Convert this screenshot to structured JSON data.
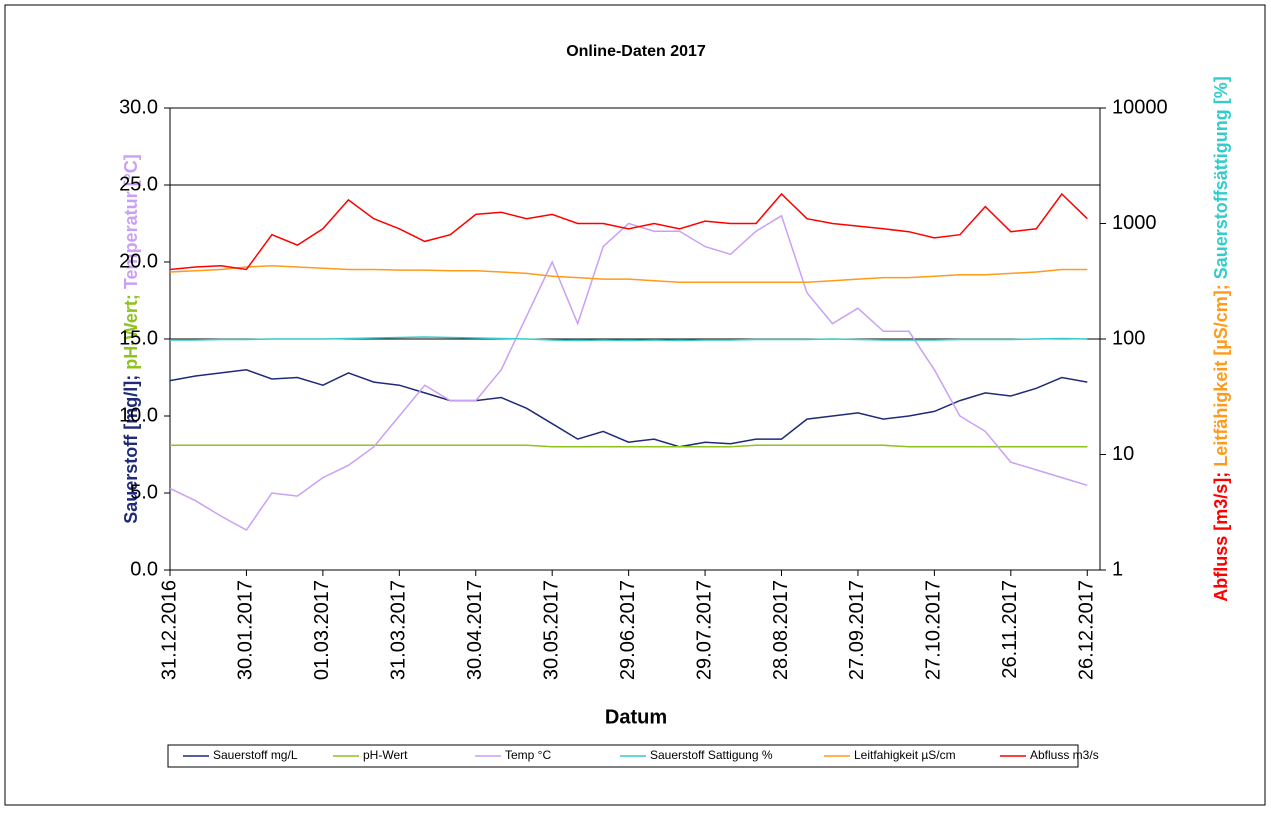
{
  "chart_data": {
    "type": "line",
    "title": "Online-Daten 2017",
    "xlabel": "Datum",
    "ylabel": [
      {
        "text": "Sauerstoff [mg/l]; ",
        "color": "#1f2a7a"
      },
      {
        "text": "pH-Wert; ",
        "color": "#8dc21f"
      },
      {
        "text": "Temperatur [°C]",
        "color": "#c9a0f5"
      }
    ],
    "y2label": [
      {
        "text": "Abfluss [m3/s]; ",
        "color": "#ff0000"
      },
      {
        "text": "Leitfähigkeit [µS/cm]; ",
        "color": "#ff9a1a"
      },
      {
        "text": "Sauerstoffsättigung [%]",
        "color": "#33cccc"
      }
    ],
    "x": [
      "31.12.2016",
      "10.01.2017",
      "20.01.2017",
      "30.01.2017",
      "09.02.2017",
      "19.02.2017",
      "01.03.2017",
      "11.03.2017",
      "21.03.2017",
      "31.03.2017",
      "10.04.2017",
      "20.04.2017",
      "30.04.2017",
      "10.05.2017",
      "20.05.2017",
      "30.05.2017",
      "09.06.2017",
      "19.06.2017",
      "29.06.2017",
      "09.07.2017",
      "19.07.2017",
      "29.07.2017",
      "08.08.2017",
      "18.08.2017",
      "28.08.2017",
      "07.09.2017",
      "17.09.2017",
      "27.09.2017",
      "07.10.2017",
      "17.10.2017",
      "27.10.2017",
      "06.11.2017",
      "16.11.2017",
      "26.11.2017",
      "06.12.2017",
      "16.12.2017",
      "26.12.2017"
    ],
    "xlim": [
      "31.12.2016",
      "31.12.2017"
    ],
    "xticks": [
      "31.12.2016",
      "30.01.2017",
      "01.03.2017",
      "31.03.2017",
      "30.04.2017",
      "30.05.2017",
      "29.06.2017",
      "29.07.2017",
      "28.08.2017",
      "27.09.2017",
      "27.10.2017",
      "26.11.2017",
      "26.12.2017"
    ],
    "ylim": [
      0,
      30
    ],
    "yticks": [
      {
        "value": 0,
        "label": "0.0"
      },
      {
        "value": 5,
        "label": "5.0"
      },
      {
        "value": 10,
        "label": "10.0"
      },
      {
        "value": 15,
        "label": "15.0"
      },
      {
        "value": 20,
        "label": "20.0"
      },
      {
        "value": 25,
        "label": "25.0"
      },
      {
        "value": 30,
        "label": "30.0"
      }
    ],
    "grid_lines": [
      15,
      25
    ],
    "y2lim": [
      1,
      10000
    ],
    "y2log": true,
    "y2ticks": [
      1,
      10,
      100,
      1000,
      10000
    ],
    "series": [
      {
        "name": "Sauerstoff mg/L",
        "color": "#1f2a7a",
        "values": [
          12.3,
          12.6,
          12.8,
          13.0,
          12.4,
          12.5,
          12.0,
          12.8,
          12.2,
          12.0,
          11.5,
          11.0,
          11.0,
          11.2,
          10.5,
          9.5,
          8.5,
          9.0,
          8.3,
          8.5,
          8.0,
          8.3,
          8.2,
          8.5,
          8.5,
          9.8,
          10.0,
          10.2,
          9.8,
          10.0,
          10.3,
          11.0,
          11.5,
          11.3,
          11.8,
          12.5,
          12.2
        ]
      },
      {
        "name": "pH-Wert",
        "color": "#8dc21f",
        "values": [
          8.1,
          8.1,
          8.1,
          8.1,
          8.1,
          8.1,
          8.1,
          8.1,
          8.1,
          8.1,
          8.1,
          8.1,
          8.1,
          8.1,
          8.1,
          8.0,
          8.0,
          8.0,
          8.0,
          8.0,
          8.0,
          8.0,
          8.0,
          8.1,
          8.1,
          8.1,
          8.1,
          8.1,
          8.1,
          8.0,
          8.0,
          8.0,
          8.0,
          8.0,
          8.0,
          8.0,
          8.0
        ]
      },
      {
        "name": "Temp °C",
        "color": "#c9a0f5",
        "values": [
          5.3,
          4.5,
          3.5,
          2.6,
          5.0,
          4.8,
          6.0,
          6.8,
          8.0,
          10.0,
          12.0,
          11.0,
          11.0,
          13.0,
          16.5,
          20.0,
          16.0,
          21.0,
          22.5,
          22.0,
          22.0,
          21.0,
          20.5,
          22.0,
          23.0,
          18.0,
          16.0,
          17.0,
          15.5,
          15.5,
          13.0,
          10.0,
          9.0,
          7.0,
          6.5,
          6.0,
          5.5
        ]
      },
      {
        "name": "Sauerstoff Sattigung %",
        "color": "#33cccc",
        "axis": "y2",
        "values": [
          98,
          98,
          99,
          99,
          100,
          100,
          100,
          101,
          102,
          103,
          104,
          103,
          102,
          101,
          100,
          98,
          97,
          98,
          97,
          98,
          97,
          98,
          98,
          99,
          99,
          99,
          100,
          99,
          98,
          98,
          98,
          99,
          99,
          99,
          100,
          101,
          100
        ]
      },
      {
        "name": "Leitfahigkeit µS/cm",
        "color": "#ff9a1a",
        "axis": "y2",
        "values": [
          380,
          390,
          400,
          420,
          430,
          420,
          410,
          400,
          400,
          395,
          395,
          390,
          390,
          380,
          370,
          350,
          340,
          330,
          330,
          320,
          310,
          310,
          310,
          310,
          310,
          310,
          320,
          330,
          340,
          340,
          350,
          360,
          360,
          370,
          380,
          400,
          400
        ]
      },
      {
        "name": "Abfluss m3/s",
        "color": "#ff0000",
        "axis": "y2",
        "values": [
          400,
          420,
          430,
          400,
          800,
          650,
          900,
          1600,
          1100,
          900,
          700,
          800,
          1200,
          1250,
          1100,
          1200,
          1000,
          1000,
          900,
          1000,
          900,
          1050,
          1000,
          1000,
          1800,
          1100,
          1000,
          950,
          900,
          850,
          750,
          800,
          1400,
          850,
          900,
          1800,
          1100
        ]
      }
    ]
  }
}
